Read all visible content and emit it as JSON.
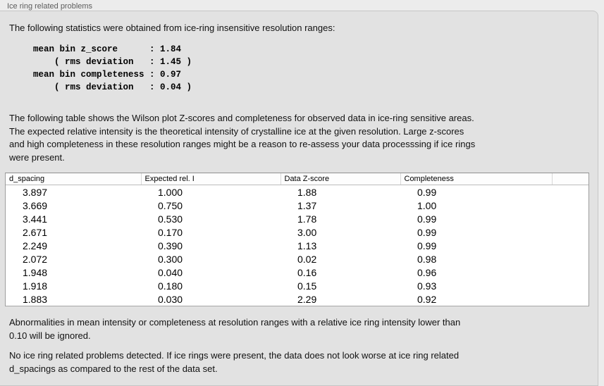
{
  "panel": {
    "title": "Ice ring related problems"
  },
  "intro_text": "The following statistics were obtained from ice-ring insensitive resolution ranges:",
  "stats_block": "mean bin z_score      : 1.84\n    ( rms deviation   : 1.45 )\nmean bin completeness : 0.97\n    ( rms deviation   : 0.04 )",
  "stats_values": {
    "mean_bin_z_score": "1.84",
    "z_score_rms_deviation": "1.45",
    "mean_bin_completeness": "0.97",
    "completeness_rms_deviation": "0.04"
  },
  "description_text": "The following table shows the Wilson plot Z-scores and completeness for observed data in ice-ring sensitive areas.\nThe expected relative intensity is the theoretical intensity of crystalline ice at the given resolution. Large z-scores\nand high completeness in these resolution ranges might be a reason to re-assess your data processsing if ice rings\nwere present.",
  "table": {
    "columns": [
      "d_spacing",
      "Expected rel. I",
      "Data Z-score",
      "Completeness"
    ],
    "rows": [
      [
        "3.897",
        "1.000",
        "1.88",
        "0.99"
      ],
      [
        "3.669",
        "0.750",
        "1.37",
        "1.00"
      ],
      [
        "3.441",
        "0.530",
        "1.78",
        "0.99"
      ],
      [
        "2.671",
        "0.170",
        "3.00",
        "0.99"
      ],
      [
        "2.249",
        "0.390",
        "1.13",
        "0.99"
      ],
      [
        "2.072",
        "0.300",
        "0.02",
        "0.98"
      ],
      [
        "1.948",
        "0.040",
        "0.16",
        "0.96"
      ],
      [
        "1.918",
        "0.180",
        "0.15",
        "0.93"
      ],
      [
        "1.883",
        "0.030",
        "2.29",
        "0.92"
      ]
    ]
  },
  "note_text": "Abnormalities in mean intensity or completeness at resolution ranges with a relative ice ring intensity lower than\n0.10 will be ignored.",
  "conclusion_text": "No ice ring related problems detected. If ice rings were present, the data does not look worse at ice ring related\nd_spacings as compared to the rest of the data set.",
  "colors": {
    "panel_bg": "#e2e2e2",
    "canvas_bg": "#ececec",
    "table_bg": "#ffffff"
  }
}
